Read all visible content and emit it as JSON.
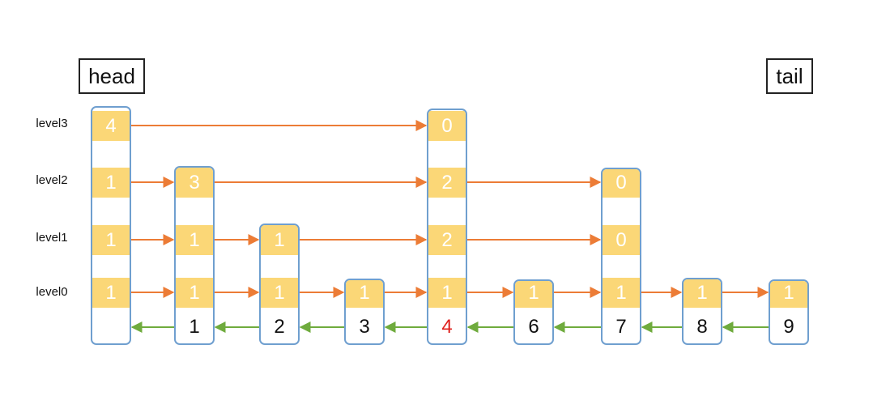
{
  "head_label": "head",
  "tail_label": "tail",
  "level_labels": [
    "level3",
    "level2",
    "level1",
    "level0"
  ],
  "colors": {
    "node_border": "#6f9fcf",
    "cell_fill": "#fbd777",
    "forward_arrow": "#ec7c36",
    "backward_arrow": "#6fab3d",
    "highlight_key": "#e0211d"
  },
  "nodes": [
    {
      "id": "head",
      "key": "",
      "spans": [
        "1",
        "1",
        "1",
        "4"
      ],
      "highlight": false
    },
    {
      "id": "n1",
      "key": "1",
      "spans": [
        "1",
        "1",
        "3"
      ],
      "highlight": false
    },
    {
      "id": "n2",
      "key": "2",
      "spans": [
        "1",
        "1"
      ],
      "highlight": false
    },
    {
      "id": "n3",
      "key": "3",
      "spans": [
        "1"
      ],
      "highlight": false
    },
    {
      "id": "n4",
      "key": "4",
      "spans": [
        "1",
        "2",
        "2",
        "0"
      ],
      "highlight": true
    },
    {
      "id": "n6",
      "key": "6",
      "spans": [
        "1"
      ],
      "highlight": false
    },
    {
      "id": "n7",
      "key": "7",
      "spans": [
        "1",
        "0",
        "0"
      ],
      "highlight": false
    },
    {
      "id": "n8",
      "key": "8",
      "spans": [
        "1"
      ],
      "highlight": false
    },
    {
      "id": "n9",
      "key": "9",
      "spans": [
        "1"
      ],
      "highlight": false
    }
  ],
  "forward_links": [
    {
      "level": 3,
      "from": 0,
      "to": 4
    },
    {
      "level": 2,
      "from": 0,
      "to": 1
    },
    {
      "level": 2,
      "from": 1,
      "to": 4
    },
    {
      "level": 2,
      "from": 4,
      "to": 6
    },
    {
      "level": 1,
      "from": 0,
      "to": 1
    },
    {
      "level": 1,
      "from": 1,
      "to": 2
    },
    {
      "level": 1,
      "from": 2,
      "to": 4
    },
    {
      "level": 1,
      "from": 4,
      "to": 6
    },
    {
      "level": 0,
      "from": 0,
      "to": 1
    },
    {
      "level": 0,
      "from": 1,
      "to": 2
    },
    {
      "level": 0,
      "from": 2,
      "to": 3
    },
    {
      "level": 0,
      "from": 3,
      "to": 4
    },
    {
      "level": 0,
      "from": 4,
      "to": 5
    },
    {
      "level": 0,
      "from": 5,
      "to": 6
    },
    {
      "level": 0,
      "from": 6,
      "to": 7
    },
    {
      "level": 0,
      "from": 7,
      "to": 8
    }
  ],
  "backward_links": [
    {
      "from": 1,
      "to": 0
    },
    {
      "from": 2,
      "to": 1
    },
    {
      "from": 3,
      "to": 2
    },
    {
      "from": 4,
      "to": 3
    },
    {
      "from": 5,
      "to": 4
    },
    {
      "from": 6,
      "to": 5
    },
    {
      "from": 7,
      "to": 6
    },
    {
      "from": 8,
      "to": 7
    }
  ]
}
